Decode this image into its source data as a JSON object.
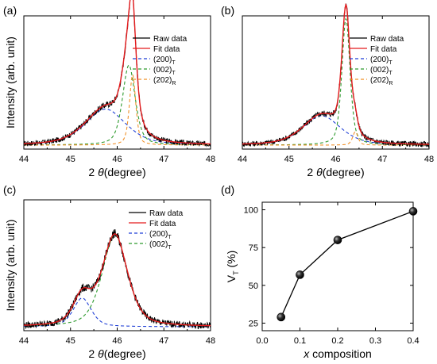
{
  "colors": {
    "raw": "#000000",
    "fit": "#e41a1c",
    "c200": "#1f3fd6",
    "c002": "#2e9a2e",
    "c202": "#f0922b",
    "axis": "#000000"
  },
  "chart_data": [
    {
      "id": "a",
      "panel_label": "(a)",
      "type": "line",
      "xlabel_prefix": "2",
      "xlabel_theta": "θ",
      "xlabel_suffix": "(degree)",
      "ylabel": "Intensity (arb. unit)",
      "xlim": [
        44,
        48
      ],
      "xticks": [
        "44",
        "45",
        "46",
        "47",
        "48"
      ],
      "show_yticks": false,
      "legend": [
        {
          "key": "raw",
          "base": "Raw data",
          "sub": ""
        },
        {
          "key": "fit",
          "base": "Fit data",
          "sub": ""
        },
        {
          "key": "c200",
          "base": "(200)",
          "sub": "T"
        },
        {
          "key": "c002",
          "base": "(002)",
          "sub": "T"
        },
        {
          "key": "c202",
          "base": "(202)",
          "sub": "R"
        }
      ],
      "baseline": 0.03,
      "noise": 0.02,
      "components": [
        {
          "key": "c200",
          "center": 45.75,
          "width": 0.45,
          "amplitude": 0.27
        },
        {
          "key": "c002",
          "center": 46.25,
          "width": 0.14,
          "amplitude": 0.6
        },
        {
          "key": "c202",
          "center": 46.33,
          "width": 0.07,
          "amplitude": 0.53
        }
      ]
    },
    {
      "id": "b",
      "panel_label": "(b)",
      "type": "line",
      "xlabel_prefix": "2",
      "xlabel_theta": "θ",
      "xlabel_suffix": "(degree)",
      "ylabel": "",
      "xlim": [
        44,
        48
      ],
      "xticks": [
        "44",
        "45",
        "46",
        "47",
        "48"
      ],
      "show_yticks": false,
      "legend": [
        {
          "key": "raw",
          "base": "Raw data",
          "sub": ""
        },
        {
          "key": "fit",
          "base": "Fit data",
          "sub": ""
        },
        {
          "key": "c200",
          "base": "(200)",
          "sub": "T"
        },
        {
          "key": "c002",
          "base": "(002)",
          "sub": "T"
        },
        {
          "key": "c202",
          "base": "(202)",
          "sub": "R"
        }
      ],
      "baseline": 0.03,
      "noise": 0.02,
      "components": [
        {
          "key": "c200",
          "center": 45.7,
          "width": 0.42,
          "amplitude": 0.22
        },
        {
          "key": "c002",
          "center": 46.22,
          "width": 0.09,
          "amplitude": 0.95
        },
        {
          "key": "c202",
          "center": 46.42,
          "width": 0.06,
          "amplitude": 0.1
        }
      ]
    },
    {
      "id": "c",
      "panel_label": "(c)",
      "type": "line",
      "xlabel_prefix": "2",
      "xlabel_theta": "θ",
      "xlabel_suffix": "(degree)",
      "ylabel": "Intensity (arb. unit)",
      "xlim": [
        44,
        48
      ],
      "xticks": [
        "44",
        "45",
        "46",
        "47",
        "48"
      ],
      "show_yticks": false,
      "legend": [
        {
          "key": "raw",
          "base": "Raw data",
          "sub": ""
        },
        {
          "key": "fit",
          "base": "Fit data",
          "sub": ""
        },
        {
          "key": "c200",
          "base": "(200)",
          "sub": "T"
        },
        {
          "key": "c002",
          "base": "(002)",
          "sub": "T"
        }
      ],
      "baseline": 0.03,
      "noise": 0.025,
      "components": [
        {
          "key": "c200",
          "center": 45.25,
          "width": 0.2,
          "amplitude": 0.22
        },
        {
          "key": "c002",
          "center": 45.95,
          "width": 0.28,
          "amplitude": 0.7
        }
      ]
    },
    {
      "id": "d",
      "panel_label": "(d)",
      "type": "scatter",
      "xlabel_italic": "x",
      "xlabel_suffix": " composition",
      "ylabel_base": "V",
      "ylabel_sub": "T",
      "ylabel_suffix": " (%)",
      "xlim": [
        0.0,
        0.4
      ],
      "ylim": [
        20,
        105
      ],
      "xticks": [
        "0.0",
        "0.1",
        "0.2",
        "0.3",
        "0.4"
      ],
      "yticks": [
        "25",
        "50",
        "75",
        "100"
      ],
      "x": [
        0.05,
        0.1,
        0.2,
        0.4
      ],
      "y": [
        29,
        57,
        80,
        99
      ]
    }
  ]
}
